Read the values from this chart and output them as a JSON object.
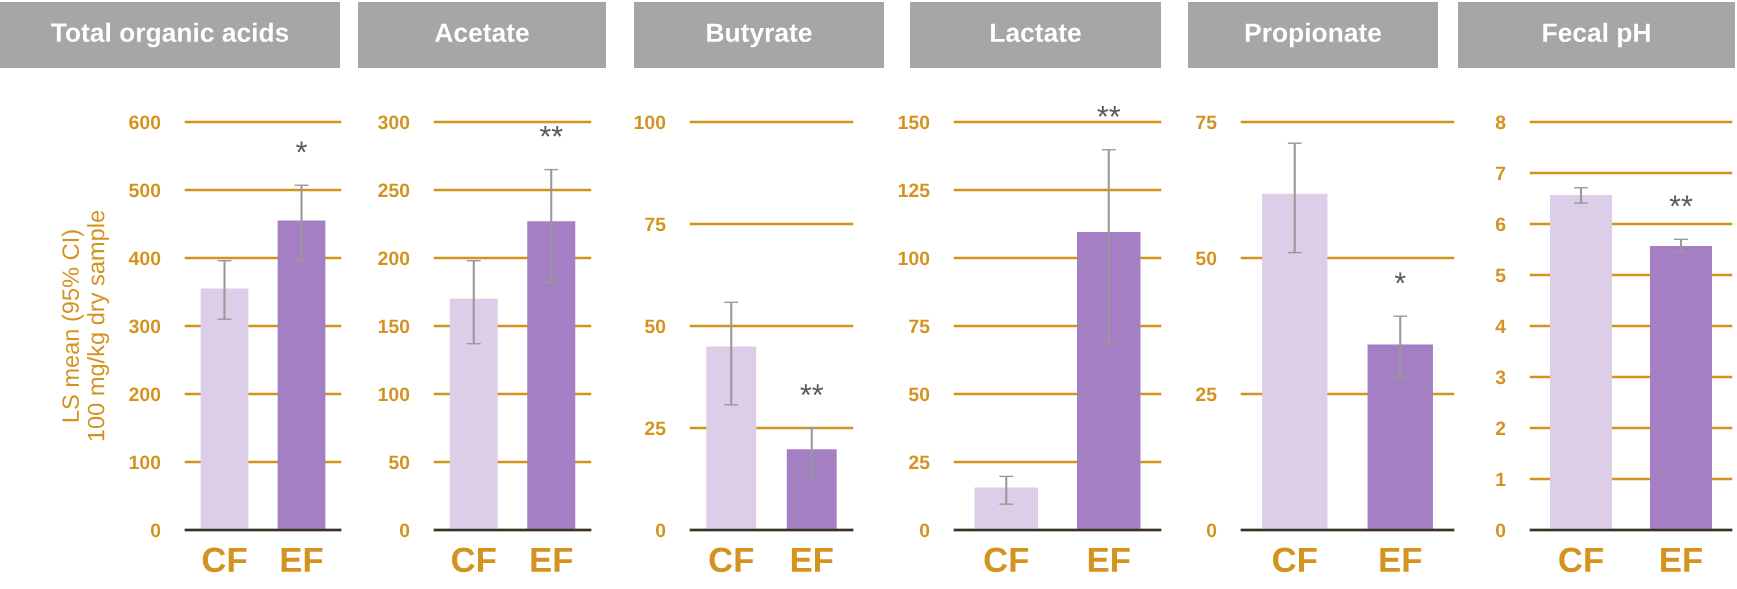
{
  "chart_data": [
    {
      "type": "bar",
      "title": "Total organic acids",
      "ylabel": "LS mean (95% CI)\n100 mg/kg dry sample",
      "categories": [
        "CF",
        "EF"
      ],
      "values": [
        355,
        455
      ],
      "colors": [
        "#dccde8",
        "#a57fc3"
      ],
      "errors": [
        [
          310,
          396
        ],
        [
          396,
          507
        ]
      ],
      "ylim": [
        0,
        600
      ],
      "yticks": [
        0,
        100,
        200,
        300,
        400,
        500,
        600
      ],
      "grid": "y",
      "annotations": [
        "*"
      ]
    },
    {
      "type": "bar",
      "title": "Acetate",
      "categories": [
        "CF",
        "EF"
      ],
      "values": [
        170,
        227
      ],
      "colors": [
        "#dccde8",
        "#a57fc3"
      ],
      "errors": [
        [
          137,
          198
        ],
        [
          182,
          265
        ]
      ],
      "ylim": [
        0,
        300
      ],
      "yticks": [
        0,
        50,
        100,
        150,
        200,
        250,
        300
      ],
      "grid": "y",
      "annotations": [
        "**"
      ]
    },
    {
      "type": "bar",
      "title": "Butyrate",
      "categories": [
        "CF",
        "EF"
      ],
      "values": [
        45,
        19.8
      ],
      "colors": [
        "#dccde8",
        "#a57fc3"
      ],
      "errors": [
        [
          30.7,
          55.8
        ],
        [
          12.8,
          25
        ]
      ],
      "ylim": [
        0,
        100
      ],
      "yticks": [
        0,
        25,
        50,
        75,
        100
      ],
      "grid": "y",
      "annotations": [
        "**"
      ]
    },
    {
      "type": "bar",
      "title": "Lactate",
      "categories": [
        "CF",
        "EF"
      ],
      "values": [
        15.6,
        109.6
      ],
      "colors": [
        "#dccde8",
        "#a57fc3"
      ],
      "errors": [
        [
          9.5,
          19.7
        ],
        [
          68.4,
          139.8
        ]
      ],
      "ylim": [
        0,
        150
      ],
      "yticks": [
        0,
        25,
        50,
        75,
        100,
        125,
        150
      ],
      "grid": "y",
      "annotations": [
        "**"
      ]
    },
    {
      "type": "bar",
      "title": "Propionate",
      "categories": [
        "CF",
        "EF"
      ],
      "values": [
        61.8,
        34.1
      ],
      "colors": [
        "#dccde8",
        "#a57fc3"
      ],
      "errors": [
        [
          51,
          71.1
        ],
        [
          27.9,
          39.3
        ]
      ],
      "ylim": [
        0,
        75
      ],
      "yticks": [
        0,
        25,
        50,
        75
      ],
      "grid": "y",
      "annotations": [
        "*"
      ]
    },
    {
      "type": "bar",
      "title": "Fecal pH",
      "categories": [
        "CF",
        "EF"
      ],
      "values": [
        6.57,
        5.57
      ],
      "colors": [
        "#dccde8",
        "#a57fc3"
      ],
      "errors": [
        [
          6.41,
          6.71
        ],
        [
          5.45,
          5.7
        ]
      ],
      "ylim": [
        0,
        8
      ],
      "yticks": [
        0,
        1,
        2,
        3,
        4,
        5,
        6,
        7,
        8
      ],
      "grid": "y",
      "annotations": [
        "**"
      ]
    }
  ]
}
